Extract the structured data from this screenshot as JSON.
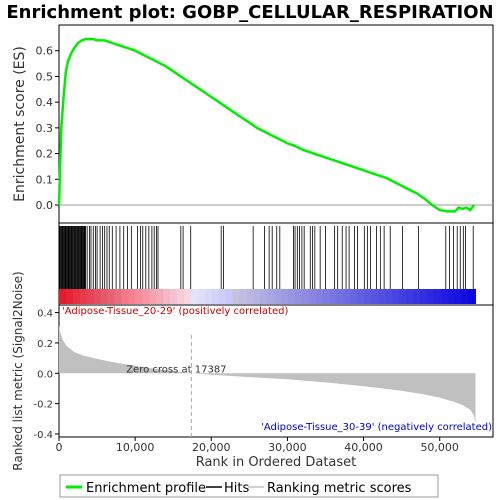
{
  "title": "Enrichment plot: GOBP_CELLULAR_RESPIRATION",
  "chart_data": {
    "type": "line",
    "title": "Enrichment plot: GOBP_CELLULAR_RESPIRATION",
    "es_panel": {
      "ylabel": "Enrichment score (ES)",
      "ylim": [
        -0.07,
        0.7
      ],
      "yticks": [
        0.0,
        0.1,
        0.2,
        0.3,
        0.4,
        0.5,
        0.6
      ],
      "ytick_labels": [
        "0.0",
        "0.1",
        "0.2",
        "0.3",
        "0.4",
        "0.5",
        "0.6"
      ],
      "series": [
        {
          "name": "Enrichment profile",
          "color": "#00ee00",
          "x": [
            0,
            300,
            600,
            900,
            1200,
            1600,
            2000,
            2500,
            3000,
            3500,
            4000,
            4500,
            5000,
            6000,
            7000,
            8000,
            9000,
            10000,
            11000,
            12000,
            13000,
            14000,
            15000,
            16000,
            17000,
            18000,
            19000,
            20000,
            21000,
            22000,
            23000,
            24000,
            25000,
            26000,
            27000,
            28000,
            29000,
            30000,
            31000,
            32000,
            33000,
            34000,
            35000,
            36000,
            37000,
            38000,
            39000,
            40000,
            41000,
            42000,
            43000,
            44000,
            45000,
            46000,
            47000,
            48000,
            49000,
            50000,
            51000,
            52000,
            52500,
            53000,
            53500,
            54000,
            54500
          ],
          "y": [
            0.0,
            0.3,
            0.42,
            0.52,
            0.56,
            0.59,
            0.61,
            0.63,
            0.64,
            0.645,
            0.645,
            0.645,
            0.64,
            0.64,
            0.63,
            0.62,
            0.61,
            0.6,
            0.585,
            0.57,
            0.555,
            0.54,
            0.52,
            0.5,
            0.48,
            0.46,
            0.44,
            0.42,
            0.4,
            0.38,
            0.36,
            0.34,
            0.32,
            0.3,
            0.285,
            0.27,
            0.255,
            0.24,
            0.23,
            0.215,
            0.205,
            0.195,
            0.185,
            0.175,
            0.165,
            0.155,
            0.145,
            0.135,
            0.125,
            0.115,
            0.105,
            0.09,
            0.075,
            0.06,
            0.045,
            0.025,
            0.0,
            -0.02,
            -0.025,
            -0.025,
            -0.01,
            -0.015,
            -0.01,
            -0.02,
            0.0
          ]
        }
      ]
    },
    "hits_panel": {
      "legend_name": "Hits",
      "hit_positions": [
        100,
        200,
        300,
        400,
        500,
        600,
        700,
        800,
        900,
        1000,
        1100,
        1200,
        1300,
        1400,
        1500,
        1600,
        1700,
        1800,
        1900,
        2000,
        2100,
        2200,
        2300,
        2400,
        2500,
        2600,
        2700,
        2800,
        2900,
        3000,
        3100,
        3200,
        3300,
        3400,
        3500,
        3700,
        4000,
        4200,
        4500,
        4800,
        5000,
        5400,
        5700,
        6000,
        6300,
        6600,
        7000,
        7500,
        8000,
        8500,
        9000,
        9500,
        10300,
        10700,
        11000,
        11400,
        11800,
        12200,
        12500,
        12800,
        13000,
        16000,
        16300,
        17300,
        21300,
        21600,
        25500,
        27000,
        27600,
        28000,
        28600,
        29000,
        30800,
        31000,
        31300,
        31600,
        31900,
        32200,
        33000,
        33300,
        33600,
        34300,
        35000,
        36200,
        36600,
        37200,
        37700,
        38100,
        38800,
        39200,
        40100,
        40500,
        40900,
        41700,
        42200,
        42700,
        43500,
        45100,
        47200,
        50800,
        51300,
        51800,
        52300,
        52700,
        53100,
        53400,
        54400
      ]
    },
    "ranked_panel": {
      "legend_name": "Ranking metric scores",
      "ylabel": "Ranked list metric (Signal2Noise)",
      "xlabel": "Rank in Ordered Dataset",
      "ylim": [
        -0.42,
        0.45
      ],
      "yticks": [
        -0.4,
        -0.2,
        0.0,
        0.2,
        0.4
      ],
      "ytick_labels": [
        "-0.4",
        "-0.2",
        "0.0",
        "0.2",
        "0.4"
      ],
      "xlim": [
        0,
        57000
      ],
      "xticks": [
        0,
        10000,
        20000,
        30000,
        40000,
        50000
      ],
      "xtick_labels": [
        "0",
        "10,000",
        "20,000",
        "30,000",
        "40,000",
        "50,000"
      ],
      "color": "#c0c0c0",
      "x": [
        0,
        100,
        500,
        1000,
        2000,
        3000,
        5000,
        7500,
        10000,
        12500,
        15000,
        17387,
        20000,
        25000,
        30000,
        35000,
        40000,
        45000,
        48000,
        50000,
        52000,
        53000,
        54000,
        54500,
        54700
      ],
      "y": [
        0.32,
        0.28,
        0.22,
        0.18,
        0.14,
        0.12,
        0.095,
        0.07,
        0.05,
        0.03,
        0.015,
        0.0,
        -0.01,
        -0.025,
        -0.04,
        -0.06,
        -0.085,
        -0.115,
        -0.14,
        -0.16,
        -0.19,
        -0.21,
        -0.24,
        -0.28,
        -0.33
      ],
      "zero_cross_label": "Zero cross at 17387",
      "zero_cross_x": 17387,
      "pos_label": "'Adipose-Tissue_20-29' (positively correlated)",
      "neg_label": "'Adipose-Tissue_30-39' (negatively correlated)"
    },
    "xmax": 54700,
    "grid": false
  },
  "legend": {
    "items": [
      {
        "label": "Enrichment profile",
        "color": "#00ee00"
      },
      {
        "label": "Hits",
        "color": "#000000"
      },
      {
        "label": "Ranking metric scores",
        "color": "#c0c0c0"
      }
    ]
  }
}
